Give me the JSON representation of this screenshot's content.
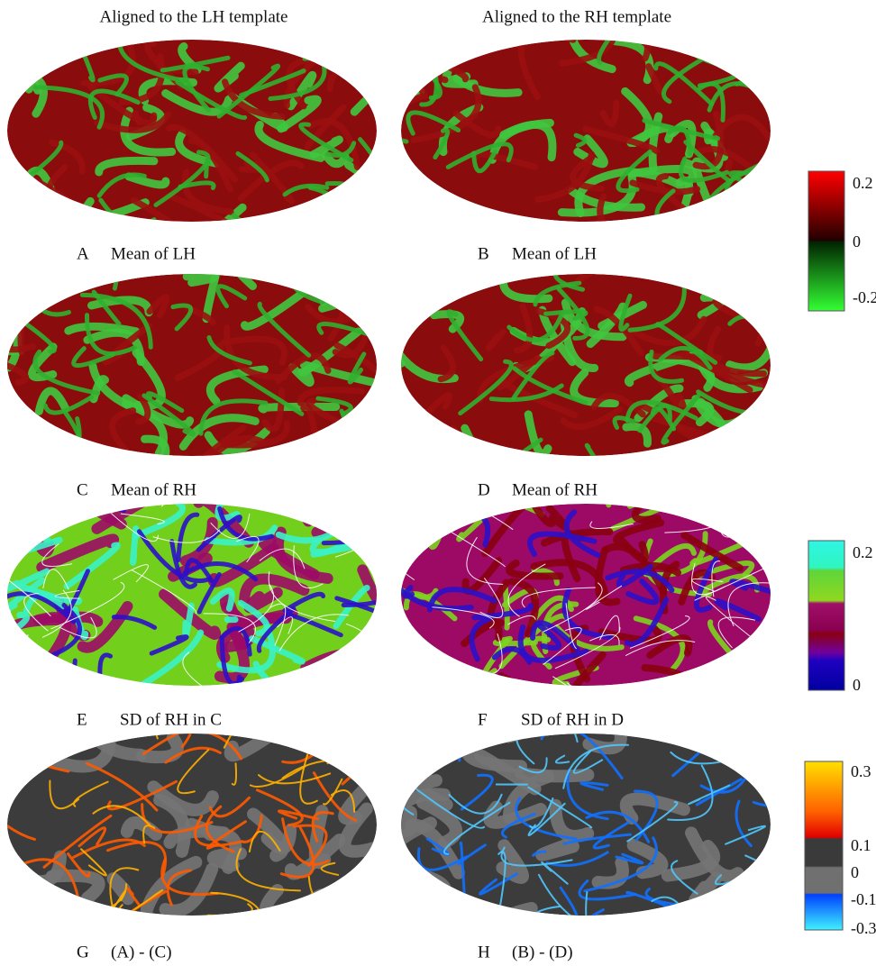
{
  "headers": [
    "Aligned to the LH template",
    "Aligned to the RH template"
  ],
  "panels": [
    {
      "letter": "A",
      "caption": "Mean of LH"
    },
    {
      "letter": "B",
      "caption": "Mean of LH"
    },
    {
      "letter": "C",
      "caption": "Mean of RH"
    },
    {
      "letter": "D",
      "caption": "Mean of RH"
    },
    {
      "letter": "E",
      "caption": "SD of RH in C"
    },
    {
      "letter": "F",
      "caption": "SD of RH in D"
    },
    {
      "letter": "G",
      "caption": "(A) - (C)"
    },
    {
      "letter": "H",
      "caption": "(B) - (D)"
    }
  ],
  "colorbars": [
    {
      "ticks": [
        0.2,
        0,
        -0.2
      ]
    },
    {
      "ticks": [
        0.2,
        0
      ]
    },
    {
      "ticks": [
        0.3,
        0.1,
        0,
        -0.1,
        -0.3
      ]
    }
  ]
}
